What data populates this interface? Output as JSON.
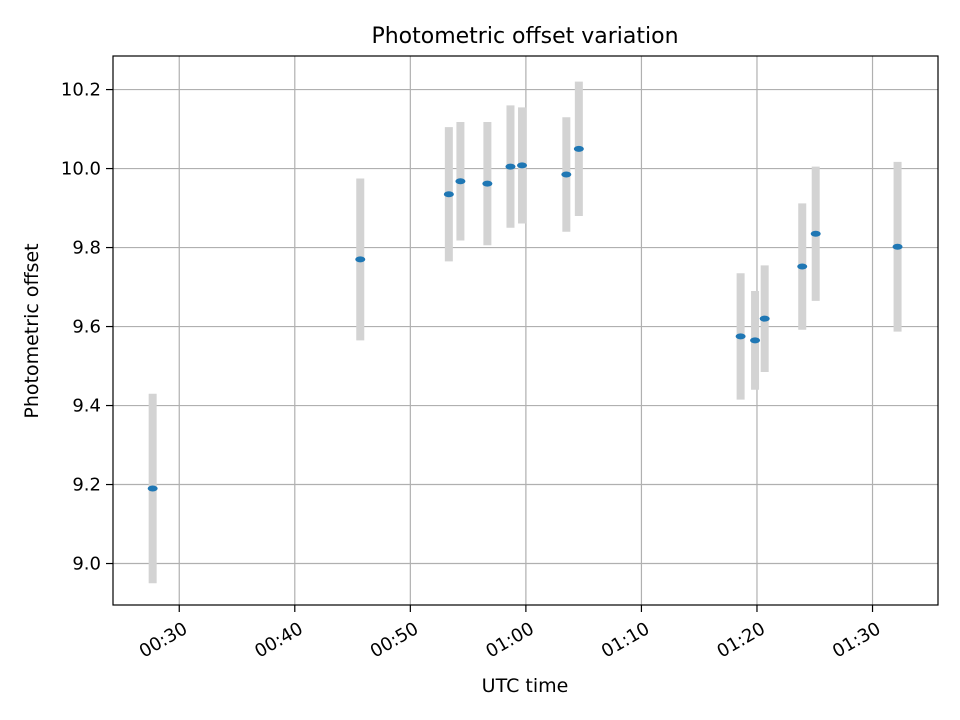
{
  "chart_data": {
    "type": "scatter",
    "title": "Photometric offset variation",
    "xlabel": "UTC time",
    "ylabel": "Photometric offset",
    "x_axis_kind": "time",
    "xlim": [
      "00:24:16",
      "01:35:40"
    ],
    "ylim": [
      8.895,
      10.285
    ],
    "grid": true,
    "x_ticks": [
      "00:30",
      "00:40",
      "00:50",
      "01:00",
      "01:10",
      "01:20",
      "01:30"
    ],
    "y_ticks": [
      "9.0",
      "9.2",
      "9.4",
      "9.6",
      "9.8",
      "10.0",
      "10.2"
    ],
    "series": [
      {
        "points": [
          {
            "x": "00:27:42",
            "y": 9.19,
            "err": 0.24
          },
          {
            "x": "00:45:40",
            "y": 9.77,
            "err": 0.205
          },
          {
            "x": "00:53:20",
            "y": 9.935,
            "err": 0.17
          },
          {
            "x": "00:54:20",
            "y": 9.968,
            "err": 0.15
          },
          {
            "x": "00:56:40",
            "y": 9.962,
            "err": 0.156
          },
          {
            "x": "00:58:40",
            "y": 10.005,
            "err": 0.155
          },
          {
            "x": "00:59:40",
            "y": 10.008,
            "err": 0.147
          },
          {
            "x": "01:03:30",
            "y": 9.985,
            "err": 0.145
          },
          {
            "x": "01:04:35",
            "y": 10.05,
            "err": 0.17
          },
          {
            "x": "01:18:35",
            "y": 9.575,
            "err": 0.16
          },
          {
            "x": "01:19:50",
            "y": 9.565,
            "err": 0.125
          },
          {
            "x": "01:20:40",
            "y": 9.62,
            "err": 0.135
          },
          {
            "x": "01:23:55",
            "y": 9.752,
            "err": 0.16
          },
          {
            "x": "01:25:05",
            "y": 9.835,
            "err": 0.17
          },
          {
            "x": "01:32:10",
            "y": 9.802,
            "err": 0.215
          }
        ]
      }
    ],
    "colors": {
      "marker": "#1f77b4",
      "errorbar": "#d3d3d3",
      "grid": "#b0b0b0"
    }
  }
}
